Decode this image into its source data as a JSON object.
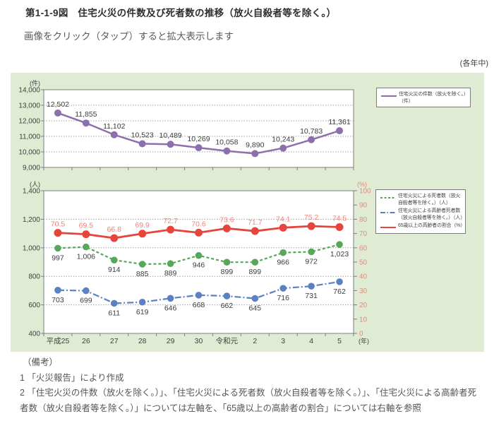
{
  "header": {
    "figure_title": "第1-1-9図　住宅火災の件数及び死者数の推移（放火自殺者等を除く。）",
    "zoom_hint": "画像をクリック（タップ）すると拡大表示します",
    "period_note": "(各年中)"
  },
  "categories": [
    "平成25",
    "26",
    "27",
    "28",
    "29",
    "30",
    "令和元",
    "2",
    "3",
    "4",
    "5"
  ],
  "x_suffix": "(年)",
  "chart_data": [
    {
      "type": "line",
      "unit_left": "(件)",
      "y_left": {
        "tick_values": [
          9000,
          10000,
          11000,
          12000,
          13000,
          14000
        ],
        "tick_labels": [
          "9,000",
          "10,000",
          "11,000",
          "12,000",
          "13,000",
          "14,000"
        ]
      },
      "show_x_labels": false,
      "series": [
        {
          "name": "住宅火災の件数（放火を除く。）（件）",
          "color": "#8d6fae",
          "dash": "solid",
          "axis": "left",
          "label_side": "above",
          "label_color": "#3c3c3c",
          "values": [
            12502,
            11855,
            11102,
            10523,
            10489,
            10269,
            10058,
            9890,
            10243,
            10783,
            11361
          ],
          "value_labels": [
            "12,502",
            "11,855",
            "11,102",
            "10,523",
            "10,489",
            "10,269",
            "10,058",
            "9,890",
            "10,243",
            "10,783",
            "11,361"
          ]
        }
      ],
      "legend": [
        {
          "color": "#8d6fae",
          "dash": "solid",
          "line1": "住宅火災の件数（放火を除く。）",
          "line2": "（件）"
        }
      ]
    },
    {
      "type": "line",
      "unit_left": "(人)",
      "unit_right": "(%)",
      "y_left": {
        "tick_values": [
          400,
          600,
          800,
          1000,
          1200,
          1400
        ],
        "tick_labels": [
          "400",
          "600",
          "800",
          "1,000",
          "1,200",
          "1,400"
        ]
      },
      "y_right": {
        "tick_values": [
          0,
          10,
          20,
          30,
          40,
          50,
          60,
          70,
          80,
          90,
          100
        ],
        "tick_labels": [
          "0",
          "10",
          "20",
          "30",
          "40",
          "50",
          "60",
          "70",
          "80",
          "90",
          "100"
        ]
      },
      "show_x_labels": true,
      "series": [
        {
          "name": "住宅火災による死者数（放火自殺者等を除く。）（人）",
          "color": "#55a857",
          "dash": "dashed",
          "axis": "left",
          "label_side": "below",
          "label_color": "#3c3c3c",
          "values": [
            997,
            1006,
            914,
            885,
            889,
            946,
            899,
            899,
            966,
            972,
            1023
          ],
          "value_labels": [
            "997",
            "1,006",
            "914",
            "885",
            "889",
            "946",
            "899",
            "899",
            "966",
            "972",
            "1,023"
          ]
        },
        {
          "name": "住宅火災による高齢者死者数（放火自殺者等を除く。）（人）",
          "color": "#5c80c4",
          "dash": "dashdot",
          "axis": "left",
          "label_side": "below",
          "label_color": "#3c3c3c",
          "values": [
            703,
            699,
            611,
            619,
            646,
            668,
            662,
            645,
            716,
            731,
            762
          ],
          "value_labels": [
            "703",
            "699",
            "611",
            "619",
            "646",
            "668",
            "662",
            "645",
            "716",
            "731",
            "762"
          ]
        },
        {
          "name": "65歳以上の高齢者の割合（%）",
          "color": "#e6453c",
          "dash": "solid",
          "axis": "right",
          "label_side": "above",
          "label_color": "#ed8578",
          "values": [
            70.5,
            69.5,
            66.8,
            69.9,
            72.7,
            70.6,
            73.6,
            71.7,
            74.1,
            75.2,
            74.5
          ],
          "value_labels": [
            "70.5",
            "69.5",
            "66.8",
            "69.9",
            "72.7",
            "70.6",
            "73.6",
            "71.7",
            "74.1",
            "75.2",
            "74.5"
          ]
        }
      ],
      "legend": [
        {
          "color": "#55a857",
          "dash": "dashed",
          "line1": "住宅火災による死者数（放火",
          "line2": "自殺者等を除く。）（人）"
        },
        {
          "color": "#5c80c4",
          "dash": "dashdot",
          "line1": "住宅火災による高齢者死者数",
          "line2": "（放火自殺者等を除く。）（人）"
        },
        {
          "color": "#e6453c",
          "dash": "solid",
          "line1": "65歳以上の高齢者の割合（%）",
          "line2": ""
        }
      ],
      "right_axis_label_color": "#ed8578"
    }
  ],
  "notes": {
    "heading": "（備考）",
    "items": [
      "1 「火災報告」により作成",
      "2 「住宅火災の件数（放火を除く。）」、「住宅火災による死者数（放火自殺者等を除く。）」、「住宅火災による高齢者死者数（放火自殺者等を除く。）」については左軸を、「65歳以上の高齢者の割合」については右軸を参照"
    ]
  }
}
